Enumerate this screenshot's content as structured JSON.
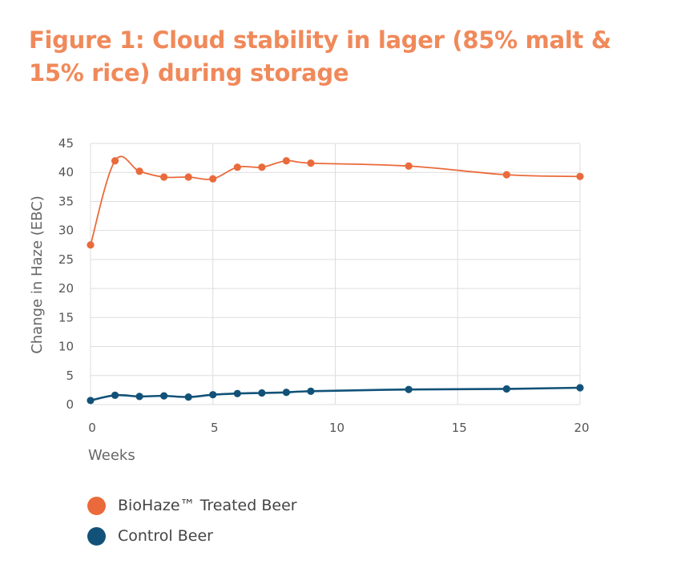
{
  "chart_data": {
    "type": "line",
    "title": "Figure 1: Cloud stability in lager (85% malt & 15% rice) during storage",
    "xlabel": "Weeks",
    "ylabel": "Change in Haze (EBC)",
    "xlim": [
      0,
      20
    ],
    "ylim": [
      0,
      45
    ],
    "xticks": [
      0,
      5,
      10,
      15,
      20
    ],
    "yticks": [
      0,
      5,
      10,
      15,
      20,
      25,
      30,
      35,
      40,
      45
    ],
    "grid": true,
    "legend_position": "bottom-left",
    "series": [
      {
        "name": "BioHaze™ Treated Beer",
        "color": "#ea6a3b",
        "x": [
          0,
          1,
          2,
          3,
          4,
          5,
          6,
          7,
          8,
          9,
          13,
          17,
          20
        ],
        "y": [
          27.5,
          42,
          40.2,
          39.2,
          39.2,
          38.9,
          40.9,
          40.9,
          42,
          41.6,
          41.1,
          39.6,
          39.3
        ]
      },
      {
        "name": "Control Beer",
        "color": "#125278",
        "x": [
          0,
          1,
          2,
          3,
          4,
          5,
          6,
          7,
          8,
          9,
          13,
          17,
          20
        ],
        "y": [
          0.7,
          1.6,
          1.4,
          1.5,
          1.3,
          1.7,
          1.9,
          2.0,
          2.1,
          2.3,
          2.6,
          2.7,
          2.9
        ]
      }
    ]
  }
}
